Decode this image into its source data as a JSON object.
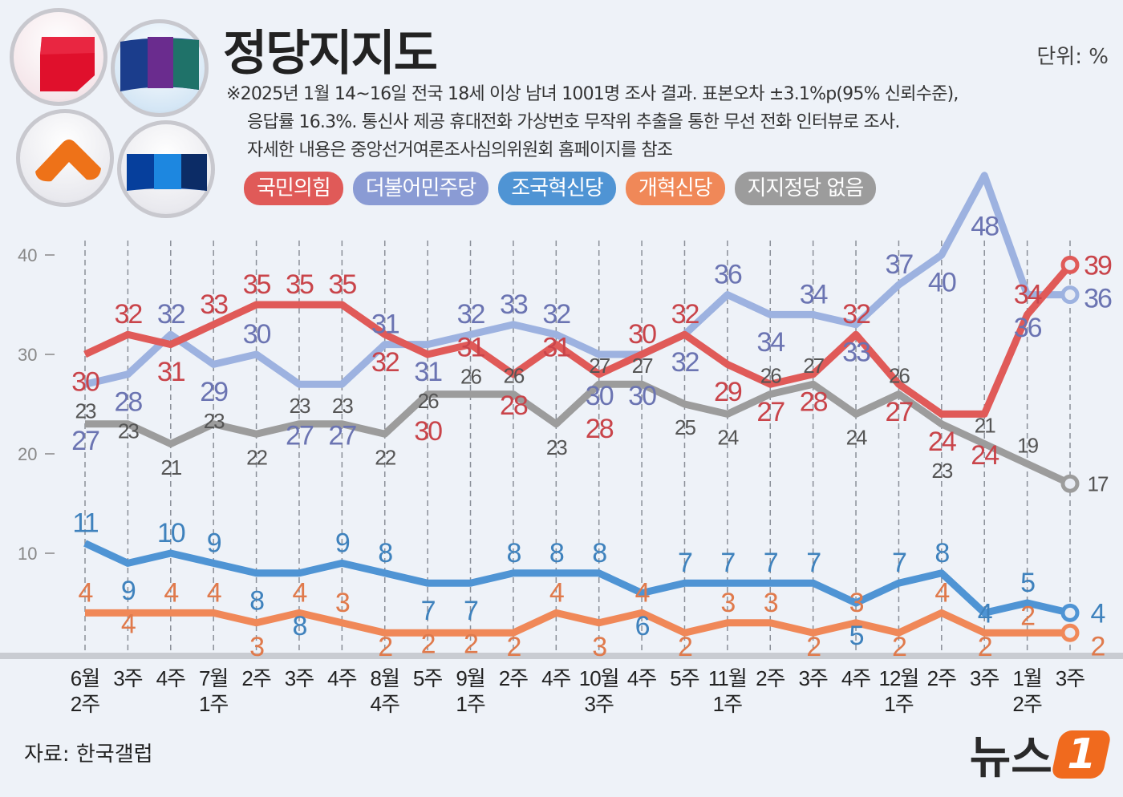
{
  "title": "정당지지도",
  "unit": "단위: %",
  "notes": [
    "※2025년 1월 14~16일 전국 18세 이상 남녀 1001명 조사 결과. 표본오차 ±3.1%p(95% 신뢰수준),",
    "응답률 16.3%. 통신사 제공 휴대전화 가상번호 무작위 추출을 통한 무선 전화 인터뷰로 조사.",
    "자세한 내용은 중앙선거여론조사심의위원회 홈페이지를 참조"
  ],
  "source": "자료: 한국갤럽",
  "brand": {
    "text": "뉴스",
    "mark": "1"
  },
  "logos": [
    "people-power-party-logo",
    "democratic-party-logo",
    "reform-party-logo",
    "rebuilding-korea-party-logo"
  ],
  "chart_data": {
    "type": "line",
    "title": "정당지지도",
    "ylim": [
      0,
      40
    ],
    "yticks": [
      10,
      20,
      30,
      40
    ],
    "grid": "vertical-dashed",
    "legend_placement": "top",
    "categories": [
      [
        "6월",
        "2주"
      ],
      [
        "3주"
      ],
      [
        "4주"
      ],
      [
        "7월",
        "1주"
      ],
      [
        "2주"
      ],
      [
        "3주"
      ],
      [
        "4주"
      ],
      [
        "8월",
        "4주"
      ],
      [
        "5주"
      ],
      [
        "9월",
        "1주"
      ],
      [
        "2주"
      ],
      [
        "4주"
      ],
      [
        "10월",
        "3주"
      ],
      [
        "4주"
      ],
      [
        "5주"
      ],
      [
        "11월",
        "1주"
      ],
      [
        "2주"
      ],
      [
        "3주"
      ],
      [
        "4주"
      ],
      [
        "12월",
        "1주"
      ],
      [
        "2주"
      ],
      [
        "3주"
      ],
      [
        "1월",
        "2주"
      ],
      [
        "3주"
      ]
    ],
    "series": [
      {
        "name": "국민의힘",
        "color": "#e05a58",
        "label_color": "#c9444a",
        "values": [
          30,
          32,
          31,
          33,
          35,
          35,
          35,
          32,
          30,
          31,
          28,
          31,
          28,
          30,
          32,
          29,
          27,
          28,
          32,
          27,
          24,
          24,
          34,
          39
        ]
      },
      {
        "name": "더불어민주당",
        "color": "#9db2e0",
        "label_color": "#6b74b2",
        "pill": "#8a9bd4",
        "values": [
          27,
          28,
          32,
          29,
          30,
          27,
          27,
          31,
          31,
          32,
          33,
          32,
          30,
          30,
          32,
          36,
          34,
          34,
          33,
          37,
          40,
          48,
          36,
          36
        ]
      },
      {
        "name": "조국혁신당",
        "color": "#4f94d4",
        "label_color": "#3f82bd",
        "values": [
          11,
          9,
          10,
          9,
          8,
          8,
          9,
          8,
          7,
          7,
          8,
          8,
          8,
          6,
          7,
          7,
          7,
          7,
          5,
          7,
          8,
          4,
          5,
          4
        ]
      },
      {
        "name": "개혁신당",
        "color": "#f08858",
        "label_color": "#e07a4c",
        "values": [
          4,
          4,
          4,
          4,
          3,
          4,
          3,
          2,
          2,
          2,
          2,
          4,
          3,
          4,
          2,
          3,
          3,
          2,
          3,
          2,
          4,
          2,
          2,
          2
        ]
      },
      {
        "name": "지지정당 없음",
        "color": "#9c9c9c",
        "label_color": "#555555",
        "values": [
          23,
          23,
          21,
          23,
          22,
          23,
          23,
          22,
          26,
          26,
          26,
          23,
          27,
          27,
          25,
          24,
          26,
          27,
          24,
          26,
          23,
          21,
          19,
          17
        ]
      }
    ]
  }
}
